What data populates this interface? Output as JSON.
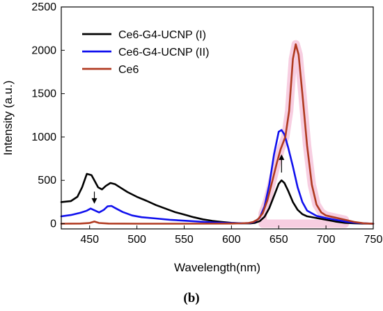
{
  "chart_data": {
    "type": "line",
    "title": "",
    "xlabel": "Wavelength(nm)",
    "ylabel": "Intensity (a.u.)",
    "xlim": [
      420,
      750
    ],
    "ylim": [
      -60,
      2500
    ],
    "x_ticks": [
      450,
      500,
      550,
      600,
      650,
      700,
      750
    ],
    "y_ticks": [
      0,
      500,
      1000,
      1500,
      2000,
      2500
    ],
    "grid": false,
    "legend_position": "top-left",
    "series": [
      {
        "name": "Ce6-G4-UCNP (I)",
        "color": "#000000",
        "points": [
          [
            420,
            250
          ],
          [
            430,
            260
          ],
          [
            437,
            310
          ],
          [
            442,
            420
          ],
          [
            447,
            575
          ],
          [
            452,
            560
          ],
          [
            455,
            500
          ],
          [
            459,
            420
          ],
          [
            463,
            395
          ],
          [
            467,
            435
          ],
          [
            472,
            470
          ],
          [
            477,
            455
          ],
          [
            482,
            420
          ],
          [
            490,
            365
          ],
          [
            500,
            310
          ],
          [
            510,
            265
          ],
          [
            520,
            215
          ],
          [
            530,
            175
          ],
          [
            540,
            135
          ],
          [
            550,
            105
          ],
          [
            560,
            75
          ],
          [
            570,
            50
          ],
          [
            580,
            32
          ],
          [
            590,
            20
          ],
          [
            600,
            10
          ],
          [
            610,
            5
          ],
          [
            620,
            3
          ],
          [
            625,
            10
          ],
          [
            630,
            30
          ],
          [
            635,
            80
          ],
          [
            640,
            180
          ],
          [
            645,
            320
          ],
          [
            650,
            460
          ],
          [
            653,
            500
          ],
          [
            656,
            470
          ],
          [
            660,
            380
          ],
          [
            665,
            250
          ],
          [
            670,
            160
          ],
          [
            675,
            110
          ],
          [
            680,
            85
          ],
          [
            690,
            65
          ],
          [
            700,
            45
          ],
          [
            710,
            25
          ],
          [
            720,
            10
          ],
          [
            730,
            4
          ],
          [
            740,
            2
          ],
          [
            750,
            0
          ]
        ]
      },
      {
        "name": "Ce6-G4-UCNP (II)",
        "color": "#1010ee",
        "points": [
          [
            420,
            85
          ],
          [
            430,
            100
          ],
          [
            440,
            125
          ],
          [
            447,
            150
          ],
          [
            451,
            175
          ],
          [
            455,
            155
          ],
          [
            460,
            130
          ],
          [
            465,
            160
          ],
          [
            469,
            200
          ],
          [
            473,
            205
          ],
          [
            478,
            175
          ],
          [
            485,
            135
          ],
          [
            495,
            95
          ],
          [
            505,
            75
          ],
          [
            520,
            60
          ],
          [
            535,
            45
          ],
          [
            550,
            35
          ],
          [
            565,
            25
          ],
          [
            580,
            15
          ],
          [
            595,
            8
          ],
          [
            610,
            5
          ],
          [
            620,
            8
          ],
          [
            625,
            25
          ],
          [
            630,
            70
          ],
          [
            635,
            200
          ],
          [
            640,
            450
          ],
          [
            645,
            800
          ],
          [
            650,
            1060
          ],
          [
            653,
            1080
          ],
          [
            656,
            1030
          ],
          [
            660,
            880
          ],
          [
            665,
            660
          ],
          [
            670,
            420
          ],
          [
            675,
            250
          ],
          [
            680,
            150
          ],
          [
            690,
            90
          ],
          [
            700,
            65
          ],
          [
            710,
            45
          ],
          [
            720,
            25
          ],
          [
            730,
            12
          ],
          [
            740,
            5
          ],
          [
            750,
            0
          ]
        ]
      },
      {
        "name": "Ce6",
        "color": "#b03a20",
        "points": [
          [
            420,
            0
          ],
          [
            440,
            2
          ],
          [
            450,
            8
          ],
          [
            455,
            25
          ],
          [
            460,
            8
          ],
          [
            470,
            2
          ],
          [
            500,
            0
          ],
          [
            550,
            0
          ],
          [
            600,
            2
          ],
          [
            610,
            4
          ],
          [
            618,
            8
          ],
          [
            623,
            20
          ],
          [
            628,
            50
          ],
          [
            633,
            120
          ],
          [
            638,
            270
          ],
          [
            643,
            480
          ],
          [
            648,
            700
          ],
          [
            652,
            860
          ],
          [
            657,
            1000
          ],
          [
            661,
            1300
          ],
          [
            665,
            1900
          ],
          [
            668,
            2070
          ],
          [
            671,
            1950
          ],
          [
            675,
            1500
          ],
          [
            680,
            900
          ],
          [
            685,
            450
          ],
          [
            690,
            220
          ],
          [
            695,
            130
          ],
          [
            700,
            95
          ],
          [
            710,
            70
          ],
          [
            720,
            45
          ],
          [
            730,
            20
          ],
          [
            740,
            5
          ],
          [
            750,
            0
          ]
        ]
      }
    ],
    "annotations": [
      {
        "type": "arrow-down",
        "x": 455,
        "y_from": 370,
        "y_to": 230
      },
      {
        "type": "arrow-up",
        "x": 653,
        "y_from": 590,
        "y_to": 800
      }
    ]
  },
  "caption": "(b)"
}
